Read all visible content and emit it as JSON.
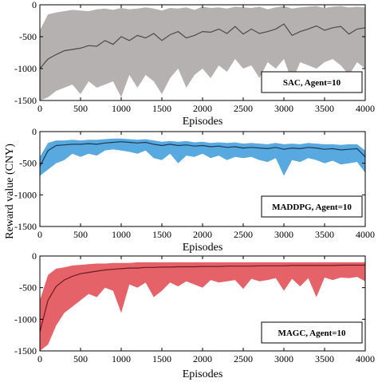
{
  "ylabel": "Reward value (CNY)",
  "chart_data": [
    {
      "type": "area",
      "legend": "SAC, Agent=10",
      "xlabel": "Episodes",
      "xlim": [
        0,
        4000
      ],
      "ylim": [
        -1500,
        0
      ],
      "xticks": [
        "0",
        "500",
        "1000",
        "1500",
        "2000",
        "2500",
        "3000",
        "3500",
        "4000"
      ],
      "yticks": [
        "0",
        "-500",
        "-1000",
        "-1500"
      ],
      "band_color": "#a8a3a3",
      "line_color": "#4a4a4a",
      "series": [
        {
          "x": [
            0,
            100,
            200,
            300,
            400,
            500,
            600,
            700,
            800,
            900,
            1000,
            1100,
            1200,
            1300,
            1400,
            1500,
            1600,
            1700,
            1800,
            1900,
            2000,
            2100,
            2200,
            2300,
            2400,
            2500,
            2600,
            2700,
            2800,
            2900,
            3000,
            3100,
            3200,
            3300,
            3400,
            3500,
            3600,
            3700,
            3800,
            3900,
            4000
          ],
          "mean": [
            -1000,
            -850,
            -780,
            -720,
            -700,
            -680,
            -640,
            -650,
            -560,
            -620,
            -500,
            -560,
            -480,
            -520,
            -450,
            -560,
            -470,
            -420,
            -520,
            -480,
            -420,
            -430,
            -380,
            -450,
            -340,
            -460,
            -380,
            -450,
            -420,
            -380,
            -300,
            -480,
            -420,
            -380,
            -330,
            -400,
            -360,
            -340,
            -460,
            -380,
            -360
          ],
          "upper": [
            -400,
            -150,
            -120,
            -100,
            -80,
            -90,
            -100,
            -70,
            -60,
            -80,
            -50,
            -70,
            -60,
            -40,
            -60,
            -90,
            -50,
            -60,
            -40,
            -80,
            -30,
            -50,
            -40,
            -60,
            -30,
            -40,
            -50,
            -30,
            -70,
            -40,
            -20,
            -60,
            -40,
            -30,
            -20,
            -50,
            -30,
            -20,
            -40,
            -30,
            -40
          ],
          "lower": [
            -1500,
            -1450,
            -1350,
            -1300,
            -1250,
            -1400,
            -1200,
            -1300,
            -1250,
            -1200,
            -1450,
            -1100,
            -1300,
            -1100,
            -1200,
            -1400,
            -1150,
            -1000,
            -1300,
            -1100,
            -1000,
            -1150,
            -950,
            -1050,
            -850,
            -1000,
            -950,
            -1150,
            -900,
            -1000,
            -850,
            -1200,
            -900,
            -950,
            -1000,
            -900,
            -850,
            -950,
            -1100,
            -900,
            -1000
          ]
        }
      ]
    },
    {
      "type": "area",
      "legend": "MADDPG, Agent=10",
      "xlabel": "Episodes",
      "xlim": [
        0,
        4000
      ],
      "ylim": [
        -1500,
        0
      ],
      "xticks": [
        "0",
        "500",
        "1000",
        "1500",
        "2000",
        "2500",
        "3000",
        "3500",
        "4000"
      ],
      "yticks": [
        "0",
        "-500",
        "-1000",
        "-1500"
      ],
      "band_color": "#3a9ad9",
      "line_color": "#1d3a52",
      "series": [
        {
          "x": [
            0,
            100,
            200,
            300,
            400,
            500,
            600,
            700,
            800,
            900,
            1000,
            1100,
            1200,
            1300,
            1400,
            1500,
            1600,
            1700,
            1800,
            1900,
            2000,
            2100,
            2200,
            2300,
            2400,
            2500,
            2600,
            2700,
            2800,
            2900,
            3000,
            3100,
            3200,
            3300,
            3400,
            3500,
            3600,
            3700,
            3800,
            3900,
            4000
          ],
          "mean": [
            -550,
            -300,
            -220,
            -210,
            -200,
            -200,
            -190,
            -200,
            -180,
            -170,
            -160,
            -170,
            -180,
            -170,
            -200,
            -220,
            -200,
            -220,
            -210,
            -230,
            -220,
            -240,
            -230,
            -250,
            -240,
            -260,
            -250,
            -260,
            -270,
            -250,
            -280,
            -260,
            -270,
            -250,
            -260,
            -280,
            -270,
            -290,
            -280,
            -270,
            -400
          ],
          "upper": [
            -400,
            -180,
            -140,
            -140,
            -130,
            -140,
            -130,
            -130,
            -120,
            -110,
            -110,
            -120,
            -130,
            -120,
            -140,
            -160,
            -150,
            -160,
            -150,
            -170,
            -160,
            -180,
            -170,
            -180,
            -170,
            -190,
            -180,
            -190,
            -200,
            -180,
            -200,
            -190,
            -200,
            -180,
            -190,
            -200,
            -200,
            -210,
            -200,
            -200,
            -300
          ],
          "lower": [
            -700,
            -600,
            -500,
            -450,
            -350,
            -400,
            -350,
            -380,
            -300,
            -280,
            -300,
            -320,
            -350,
            -300,
            -420,
            -450,
            -350,
            -500,
            -380,
            -400,
            -350,
            -420,
            -380,
            -450,
            -400,
            -420,
            -400,
            -450,
            -480,
            -420,
            -700,
            -450,
            -480,
            -420,
            -450,
            -500,
            -460,
            -520,
            -500,
            -480,
            -650
          ]
        }
      ]
    },
    {
      "type": "area",
      "legend": "MAGC, Agent=10",
      "xlabel": "Episodes",
      "xlim": [
        0,
        4000
      ],
      "ylim": [
        -1500,
        0
      ],
      "xticks": [
        "0",
        "500",
        "1000",
        "1500",
        "2000",
        "2500",
        "3000",
        "3500",
        "4000"
      ],
      "yticks": [
        "0",
        "-500",
        "-1000",
        "-1500"
      ],
      "band_color": "#e0474f",
      "line_color": "#6e1a1f",
      "series": [
        {
          "x": [
            0,
            100,
            200,
            300,
            400,
            500,
            600,
            700,
            800,
            900,
            1000,
            1100,
            1200,
            1300,
            1400,
            1500,
            1600,
            1700,
            1800,
            1900,
            2000,
            2100,
            2200,
            2300,
            2400,
            2500,
            2600,
            2700,
            2800,
            2900,
            3000,
            3100,
            3200,
            3300,
            3400,
            3500,
            3600,
            3700,
            3800,
            3900,
            4000
          ],
          "mean": [
            -1200,
            -700,
            -480,
            -380,
            -320,
            -280,
            -260,
            -240,
            -220,
            -210,
            -200,
            -190,
            -190,
            -180,
            -180,
            -175,
            -175,
            -170,
            -170,
            -170,
            -165,
            -165,
            -165,
            -160,
            -160,
            -160,
            -160,
            -155,
            -155,
            -155,
            -155,
            -150,
            -150,
            -150,
            -150,
            -150,
            -150,
            -145,
            -145,
            -145,
            -145
          ],
          "upper": [
            -700,
            -300,
            -200,
            -180,
            -150,
            -140,
            -130,
            -120,
            -120,
            -110,
            -110,
            -110,
            -100,
            -100,
            -100,
            -100,
            -100,
            -100,
            -100,
            -100,
            -100,
            -100,
            -100,
            -100,
            -100,
            -100,
            -100,
            -100,
            -100,
            -100,
            -100,
            -100,
            -100,
            -100,
            -100,
            -100,
            -100,
            -100,
            -100,
            -100,
            -100
          ],
          "lower": [
            -1500,
            -1400,
            -1100,
            -900,
            -800,
            -700,
            -600,
            -650,
            -500,
            -550,
            -900,
            -450,
            -500,
            -420,
            -650,
            -550,
            -420,
            -480,
            -400,
            -450,
            -500,
            -380,
            -420,
            -400,
            -380,
            -520,
            -360,
            -400,
            -380,
            -350,
            -550,
            -360,
            -480,
            -350,
            -650,
            -340,
            -380,
            -340,
            -350,
            -330,
            -400
          ]
        }
      ]
    }
  ]
}
